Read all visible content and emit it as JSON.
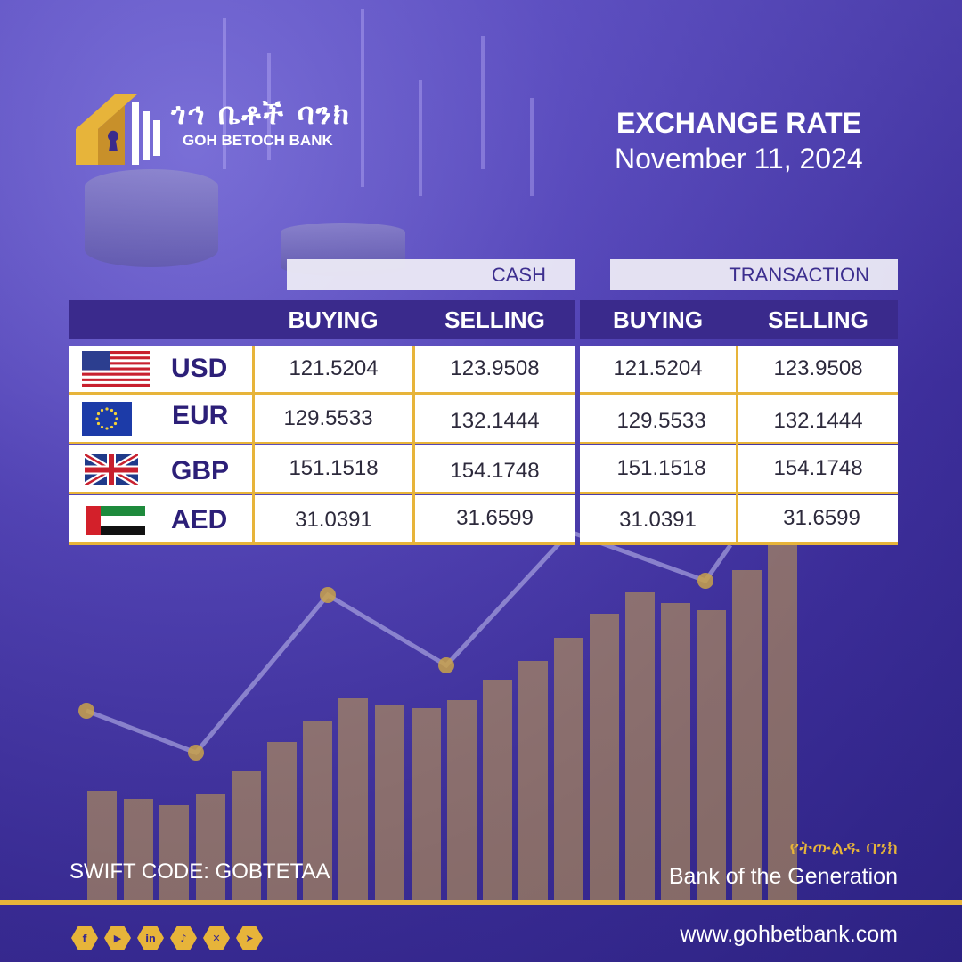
{
  "brand": {
    "name_amharic": "ጎኅ ቤቶች ባንክ",
    "name_english": "GOH BETOCH BANK",
    "accent_color": "#e7b43a",
    "primary_color": "#3a2a8c"
  },
  "header": {
    "title": "EXCHANGE RATE",
    "date": "November 11, 2024"
  },
  "table": {
    "groups": [
      "CASH",
      "TRANSACTION"
    ],
    "columns": [
      "BUYING",
      "SELLING",
      "BUYING",
      "SELLING"
    ],
    "rows": [
      {
        "currency": "USD",
        "flag": "us-flag",
        "cash_buying": "121.5204",
        "cash_selling": "123.9508",
        "transaction_buying": "121.5204",
        "transaction_selling": "123.9508"
      },
      {
        "currency": "EUR",
        "flag": "eu-flag",
        "cash_buying": "129.5533",
        "cash_selling": "132.1444",
        "transaction_buying": "129.5533",
        "transaction_selling": "132.1444"
      },
      {
        "currency": "GBP",
        "flag": "uk-flag",
        "cash_buying": "151.1518",
        "cash_selling": "154.1748",
        "transaction_buying": "151.1518",
        "transaction_selling": "154.1748"
      },
      {
        "currency": "AED",
        "flag": "uae-flag",
        "cash_buying": "31.0391",
        "cash_selling": "31.6599",
        "transaction_buying": "31.0391",
        "transaction_selling": "31.6599"
      }
    ]
  },
  "footer": {
    "swift": "SWIFT CODE: GOBTETAA",
    "slogan_amharic": "የትውልዱ ባንክ",
    "slogan": "Bank of the Generation",
    "website": "www.gohbetbank.com",
    "social_icons": [
      "facebook-icon",
      "youtube-icon",
      "linkedin-icon",
      "tiktok-icon",
      "x-icon",
      "telegram-icon"
    ]
  }
}
